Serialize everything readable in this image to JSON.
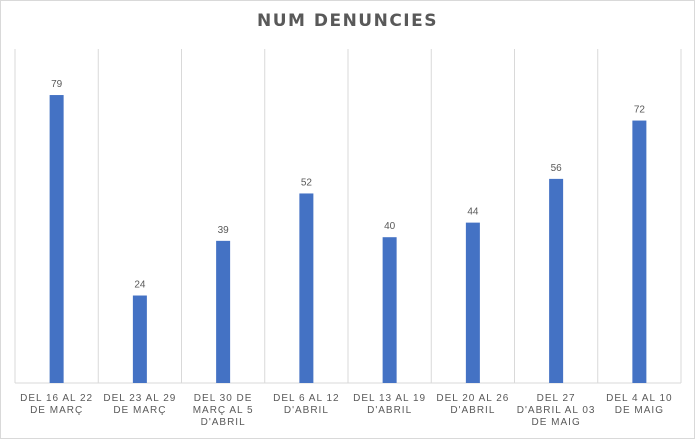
{
  "chart_data": {
    "type": "bar",
    "title": "NUM DENUNCIES",
    "categories": [
      "DEL 16 AL 22 DE MARÇ",
      "DEL 23 AL 29 DE MARÇ",
      "DEL 30 DE MARÇ AL 5 D'ABRIL",
      "DEL 6 AL 12 D'ABRIL",
      "DEL 13 AL 19 D'ABRIL",
      "DEL 20 AL 26 D'ABRIL",
      "DEL 27 D'ABRIL AL 03 DE MAIG",
      "DEL 4 AL 10 DE MAIG"
    ],
    "category_lines": [
      [
        "DEL 16 AL 22",
        "DE MARÇ"
      ],
      [
        "DEL 23 AL 29",
        "DE MARÇ"
      ],
      [
        "DEL 30 DE",
        "MARÇ AL 5",
        "D'ABRIL"
      ],
      [
        "DEL 6 AL 12",
        "D'ABRIL"
      ],
      [
        "DEL 13 AL 19",
        "D'ABRIL"
      ],
      [
        "DEL 20 AL 26",
        "D'ABRIL"
      ],
      [
        "DEL 27",
        "D'ABRIL AL 03",
        "DE MAIG"
      ],
      [
        "DEL 4 AL 10",
        "DE MAIG"
      ]
    ],
    "values": [
      79,
      24,
      39,
      52,
      40,
      44,
      56,
      72
    ],
    "ylim": [
      0,
      90
    ],
    "grid": "vertical",
    "legend": "none",
    "colors": {
      "bar": "#4472c4",
      "grid": "#d9d9d9",
      "text": "#595959"
    }
  }
}
